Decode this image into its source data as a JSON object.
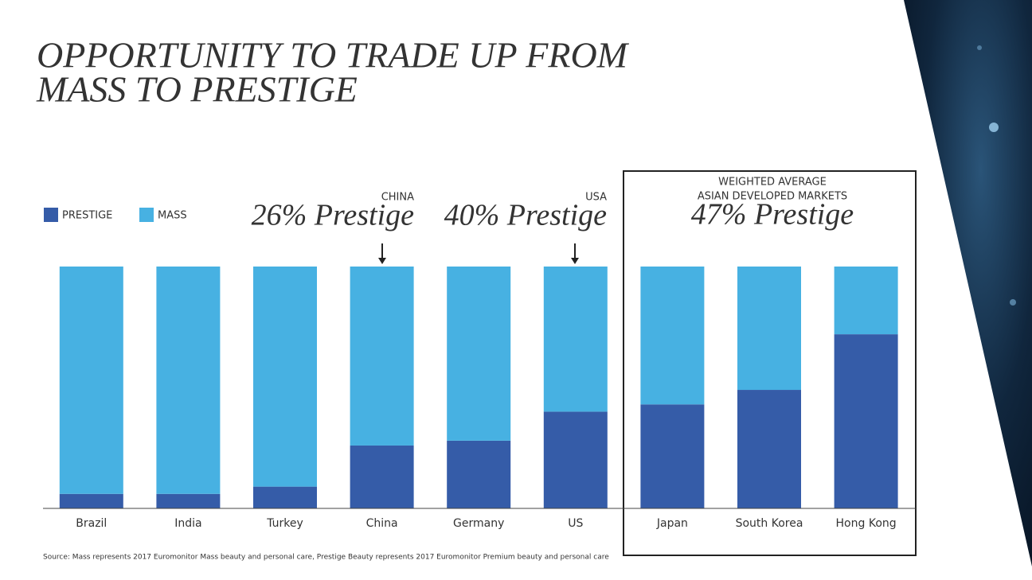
{
  "chart_data": {
    "type": "stacked_bar",
    "title": [
      "OPPORTUNITY TO TRADE UP FROM",
      "MASS TO PRESTIGE"
    ],
    "categories": [
      "Brazil",
      "India",
      "Turkey",
      "China",
      "Germany",
      "US",
      "Japan",
      "South Korea",
      "Hong Kong"
    ],
    "series": [
      {
        "name": "PRESTIGE",
        "color": "#355ca8",
        "values": [
          6,
          6,
          9,
          26,
          28,
          40,
          43,
          49,
          72
        ]
      },
      {
        "name": "MASS",
        "color": "#47b1e2",
        "values": [
          94,
          94,
          91,
          74,
          72,
          60,
          57,
          51,
          28
        ]
      }
    ],
    "ylim": [
      0,
      100
    ],
    "annotations": [
      {
        "label": "CHINA",
        "text": "26% Prestige"
      },
      {
        "label": "USA",
        "text": "40% Prestige"
      },
      {
        "label": [
          "WEIGHTED AVERAGE",
          "ASIAN DEVELOPED MARKETS"
        ],
        "text": "47% Prestige"
      }
    ],
    "source": "Source: Mass represents 2017 Euromonitor Mass beauty and personal care, Prestige Beauty represents 2017 Euromonitor Premium beauty and personal care"
  }
}
